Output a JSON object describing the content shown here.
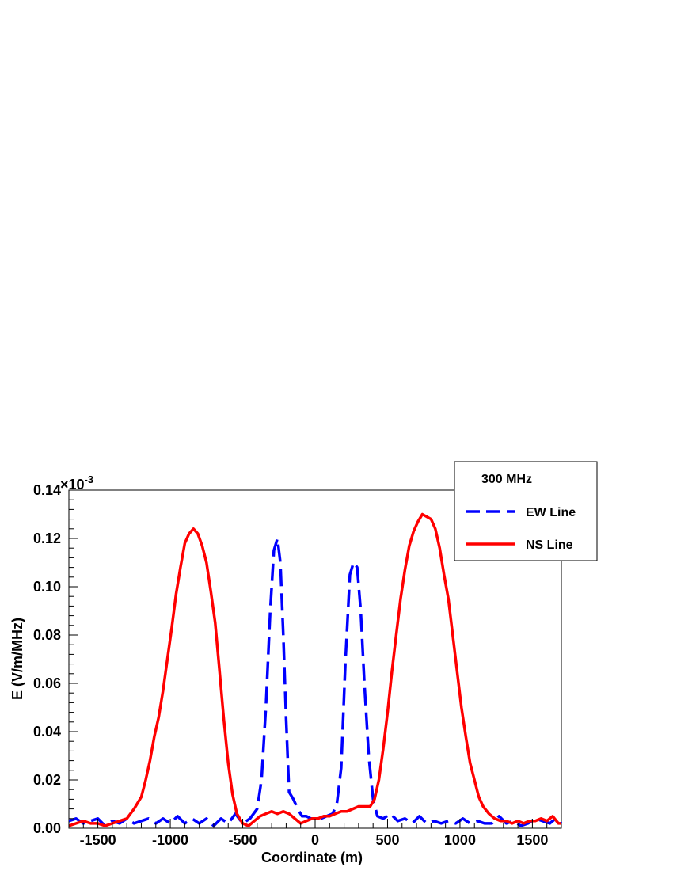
{
  "chart_data": {
    "type": "line",
    "title": "",
    "xlabel": "Coordinate (m)",
    "ylabel": "E (V/m/MHz)",
    "y_exponent_label": "×10",
    "y_exponent_power": "-3",
    "xlim": [
      -1700,
      1700
    ],
    "ylim": [
      0,
      0.14
    ],
    "x_ticks": [
      -1500,
      -1000,
      -500,
      0,
      500,
      1000,
      1500
    ],
    "x_tick_labels": [
      "-1500",
      "-1000",
      "-500",
      "0",
      "500",
      "1000",
      "1500"
    ],
    "y_ticks": [
      0,
      0.02,
      0.04,
      0.06,
      0.08,
      0.1,
      0.12,
      0.14
    ],
    "y_tick_labels": [
      "0.00",
      "0.02",
      "0.04",
      "0.06",
      "0.08",
      "0.10",
      "0.12",
      "0.14"
    ],
    "grid": false,
    "legend": {
      "placement": "top-right",
      "header": "300 MHz"
    },
    "series": [
      {
        "name": "EW Line",
        "color": "#0000ff",
        "style": "dashed",
        "points": [
          [
            -1700,
            0.003
          ],
          [
            -1650,
            0.004
          ],
          [
            -1600,
            0.002
          ],
          [
            -1550,
            0.003
          ],
          [
            -1500,
            0.004
          ],
          [
            -1450,
            0.001
          ],
          [
            -1400,
            0.003
          ],
          [
            -1350,
            0.002
          ],
          [
            -1300,
            0.004
          ],
          [
            -1250,
            0.002
          ],
          [
            -1200,
            0.003
          ],
          [
            -1150,
            0.004
          ],
          [
            -1100,
            0.002
          ],
          [
            -1050,
            0.004
          ],
          [
            -1000,
            0.002
          ],
          [
            -950,
            0.005
          ],
          [
            -900,
            0.002
          ],
          [
            -850,
            0.004
          ],
          [
            -800,
            0.002
          ],
          [
            -750,
            0.004
          ],
          [
            -700,
            0.001
          ],
          [
            -650,
            0.004
          ],
          [
            -600,
            0.002
          ],
          [
            -550,
            0.006
          ],
          [
            -500,
            0.002
          ],
          [
            -450,
            0.004
          ],
          [
            -400,
            0.008
          ],
          [
            -370,
            0.02
          ],
          [
            -340,
            0.05
          ],
          [
            -310,
            0.09
          ],
          [
            -285,
            0.115
          ],
          [
            -260,
            0.12
          ],
          [
            -240,
            0.11
          ],
          [
            -220,
            0.08
          ],
          [
            -200,
            0.045
          ],
          [
            -180,
            0.015
          ],
          [
            -150,
            0.012
          ],
          [
            -120,
            0.008
          ],
          [
            -90,
            0.005
          ],
          [
            -60,
            0.005
          ],
          [
            -30,
            0.004
          ],
          [
            0,
            0.004
          ],
          [
            40,
            0.004
          ],
          [
            80,
            0.005
          ],
          [
            120,
            0.006
          ],
          [
            150,
            0.01
          ],
          [
            180,
            0.025
          ],
          [
            210,
            0.07
          ],
          [
            240,
            0.105
          ],
          [
            265,
            0.11
          ],
          [
            290,
            0.108
          ],
          [
            315,
            0.09
          ],
          [
            340,
            0.06
          ],
          [
            370,
            0.03
          ],
          [
            400,
            0.012
          ],
          [
            430,
            0.005
          ],
          [
            470,
            0.004
          ],
          [
            520,
            0.006
          ],
          [
            570,
            0.003
          ],
          [
            620,
            0.004
          ],
          [
            670,
            0.002
          ],
          [
            720,
            0.005
          ],
          [
            770,
            0.002
          ],
          [
            820,
            0.003
          ],
          [
            870,
            0.002
          ],
          [
            920,
            0.003
          ],
          [
            970,
            0.002
          ],
          [
            1020,
            0.004
          ],
          [
            1070,
            0.002
          ],
          [
            1120,
            0.003
          ],
          [
            1170,
            0.002
          ],
          [
            1220,
            0.002
          ],
          [
            1270,
            0.005
          ],
          [
            1320,
            0.002
          ],
          [
            1370,
            0.003
          ],
          [
            1420,
            0.001
          ],
          [
            1470,
            0.002
          ],
          [
            1520,
            0.004
          ],
          [
            1570,
            0.003
          ],
          [
            1620,
            0.002
          ],
          [
            1660,
            0.004
          ],
          [
            1700,
            0.002
          ]
        ]
      },
      {
        "name": "NS Line",
        "color": "#ff0000",
        "style": "solid",
        "points": [
          [
            -1700,
            0.001
          ],
          [
            -1650,
            0.002
          ],
          [
            -1600,
            0.003
          ],
          [
            -1550,
            0.002
          ],
          [
            -1500,
            0.002
          ],
          [
            -1450,
            0.001
          ],
          [
            -1400,
            0.002
          ],
          [
            -1350,
            0.003
          ],
          [
            -1300,
            0.004
          ],
          [
            -1250,
            0.008
          ],
          [
            -1200,
            0.013
          ],
          [
            -1170,
            0.02
          ],
          [
            -1140,
            0.028
          ],
          [
            -1110,
            0.038
          ],
          [
            -1080,
            0.046
          ],
          [
            -1050,
            0.057
          ],
          [
            -1020,
            0.07
          ],
          [
            -990,
            0.083
          ],
          [
            -960,
            0.097
          ],
          [
            -930,
            0.108
          ],
          [
            -900,
            0.118
          ],
          [
            -870,
            0.122
          ],
          [
            -840,
            0.124
          ],
          [
            -810,
            0.122
          ],
          [
            -780,
            0.117
          ],
          [
            -750,
            0.11
          ],
          [
            -720,
            0.098
          ],
          [
            -690,
            0.085
          ],
          [
            -660,
            0.065
          ],
          [
            -630,
            0.045
          ],
          [
            -600,
            0.027
          ],
          [
            -570,
            0.014
          ],
          [
            -540,
            0.006
          ],
          [
            -500,
            0.002
          ],
          [
            -460,
            0.001
          ],
          [
            -420,
            0.003
          ],
          [
            -380,
            0.005
          ],
          [
            -340,
            0.006
          ],
          [
            -300,
            0.007
          ],
          [
            -260,
            0.006
          ],
          [
            -220,
            0.007
          ],
          [
            -180,
            0.006
          ],
          [
            -140,
            0.004
          ],
          [
            -100,
            0.002
          ],
          [
            -60,
            0.003
          ],
          [
            -20,
            0.004
          ],
          [
            20,
            0.004
          ],
          [
            60,
            0.005
          ],
          [
            100,
            0.005
          ],
          [
            140,
            0.006
          ],
          [
            180,
            0.007
          ],
          [
            220,
            0.007
          ],
          [
            260,
            0.008
          ],
          [
            300,
            0.009
          ],
          [
            340,
            0.009
          ],
          [
            380,
            0.009
          ],
          [
            410,
            0.012
          ],
          [
            440,
            0.02
          ],
          [
            470,
            0.033
          ],
          [
            500,
            0.048
          ],
          [
            530,
            0.065
          ],
          [
            560,
            0.08
          ],
          [
            590,
            0.095
          ],
          [
            620,
            0.107
          ],
          [
            650,
            0.117
          ],
          [
            680,
            0.123
          ],
          [
            710,
            0.127
          ],
          [
            740,
            0.13
          ],
          [
            770,
            0.129
          ],
          [
            800,
            0.128
          ],
          [
            830,
            0.124
          ],
          [
            860,
            0.116
          ],
          [
            890,
            0.105
          ],
          [
            920,
            0.095
          ],
          [
            950,
            0.08
          ],
          [
            980,
            0.065
          ],
          [
            1010,
            0.05
          ],
          [
            1040,
            0.038
          ],
          [
            1070,
            0.027
          ],
          [
            1100,
            0.02
          ],
          [
            1130,
            0.013
          ],
          [
            1160,
            0.009
          ],
          [
            1200,
            0.006
          ],
          [
            1240,
            0.004
          ],
          [
            1280,
            0.003
          ],
          [
            1320,
            0.003
          ],
          [
            1360,
            0.002
          ],
          [
            1400,
            0.003
          ],
          [
            1440,
            0.002
          ],
          [
            1480,
            0.003
          ],
          [
            1520,
            0.003
          ],
          [
            1560,
            0.004
          ],
          [
            1600,
            0.003
          ],
          [
            1640,
            0.005
          ],
          [
            1680,
            0.002
          ],
          [
            1700,
            0.002
          ]
        ]
      }
    ]
  }
}
